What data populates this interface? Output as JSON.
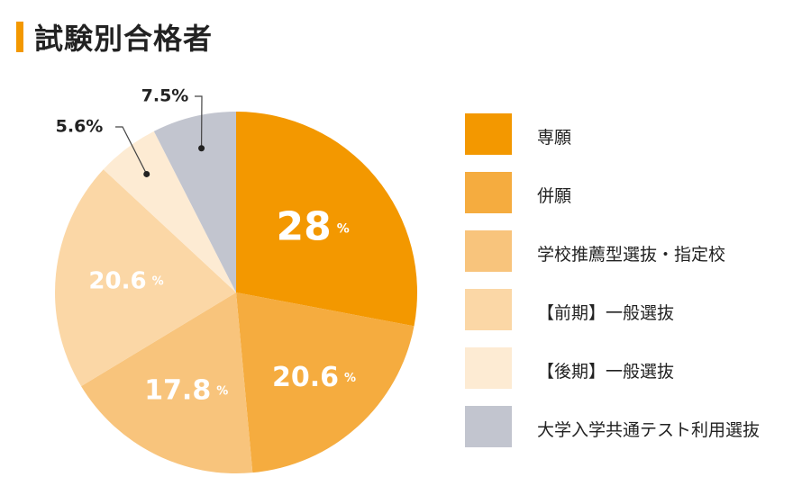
{
  "chart_data": {
    "type": "pie",
    "title": "試験別合格者",
    "categories": [
      "専願",
      "併願",
      "学校推薦型選抜・指定校",
      "【前期】一般選抜",
      "【後期】一般選抜",
      "大学入学共通テスト利用選抜"
    ],
    "values": [
      28,
      20.6,
      17.8,
      20.6,
      5.6,
      7.5
    ],
    "value_labels": [
      "28",
      "20.6",
      "17.8",
      "20.6",
      "5.6%",
      "7.5%"
    ],
    "unit": "%",
    "colors": [
      "#f39800",
      "#f5ac3f",
      "#f8c47c",
      "#fbd7a6",
      "#fdebd3",
      "#c2c5cf"
    ],
    "label_colors": [
      "#ffffff",
      "#ffffff",
      "#ffffff",
      "#ffffff",
      "#222222",
      "#222222"
    ],
    "legend_position": "right"
  }
}
